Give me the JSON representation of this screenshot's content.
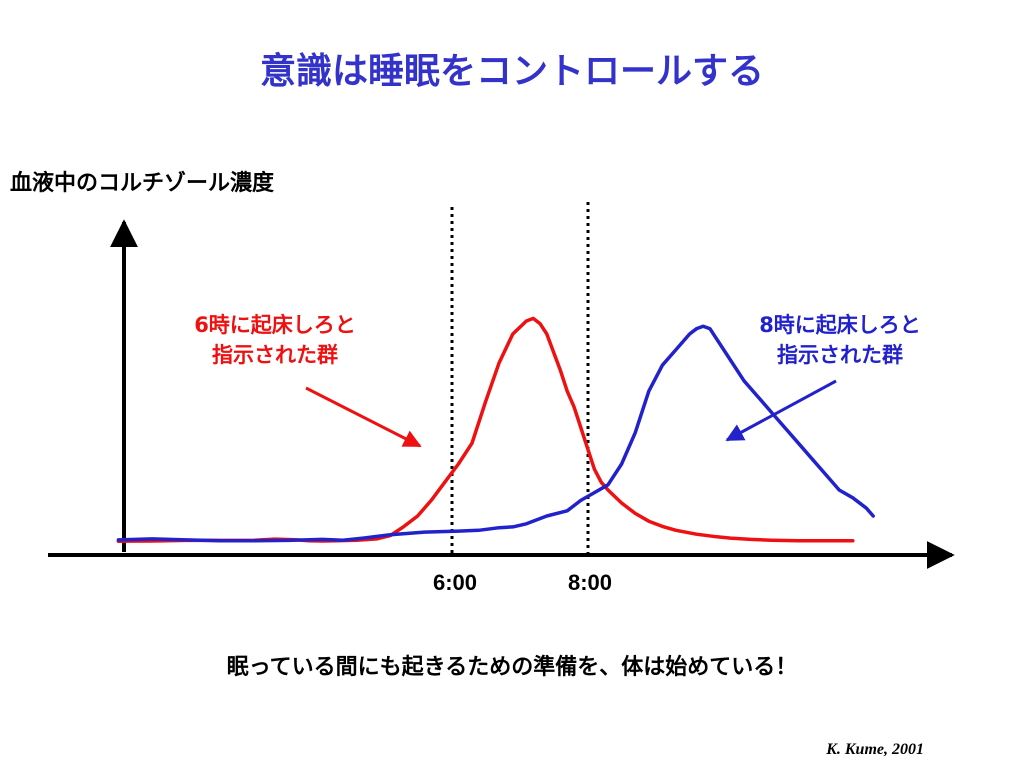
{
  "slide": {
    "title": "意識は睡眠をコントロールする",
    "message": "眠っている間にも起きるための準備を、体は始めている！",
    "credit": "K. Kume, 2001"
  },
  "chart_data": {
    "type": "line",
    "ylabel": "血液中のコルチゾール濃度",
    "xlabel": "",
    "x_ticks": [
      "6:00",
      "8:00"
    ],
    "y_ticks": [],
    "annotations": [
      {
        "lines": [
          "6時に起床しろと",
          "指示された群"
        ],
        "color": "#ee1111"
      },
      {
        "lines": [
          "8時に起床しろと",
          "指示された群"
        ],
        "color": "#2222cc"
      }
    ],
    "series": [
      {
        "color": "#ee1111",
        "x": [
          0,
          0.5,
          1,
          1.5,
          2,
          2.3,
          2.6,
          2.8,
          3,
          3.2,
          3.5,
          3.8,
          4,
          4.2,
          4.4,
          4.6,
          4.8,
          5,
          5.2,
          5.4,
          5.6,
          5.8,
          6,
          6.1,
          6.2,
          6.3,
          6.4,
          6.5,
          6.6,
          6.7,
          6.8,
          6.9,
          7,
          7.1,
          7.2,
          7.4,
          7.6,
          7.8,
          8,
          8.2,
          8.5,
          8.8,
          9,
          9.3,
          9.6,
          10,
          10.5,
          10.8
        ],
        "y": [
          0.3,
          0.4,
          0.6,
          0.6,
          0.7,
          1.1,
          0.9,
          0.5,
          0.4,
          0.5,
          0.7,
          1.2,
          2.5,
          6,
          10,
          16,
          23,
          30,
          38,
          54,
          69,
          80,
          85,
          86,
          84,
          80,
          73,
          66,
          58,
          52,
          44,
          36,
          28,
          23,
          20,
          15,
          11,
          8,
          6,
          4.5,
          3,
          2,
          1.5,
          1,
          0.7,
          0.5,
          0.5,
          0.5
        ]
      },
      {
        "color": "#2222cc",
        "x": [
          0,
          0.5,
          1,
          1.5,
          2,
          2.5,
          3,
          3.3,
          3.6,
          4,
          4.5,
          5,
          5.3,
          5.6,
          5.8,
          6,
          6.3,
          6.6,
          6.8,
          7,
          7.2,
          7.4,
          7.6,
          7.8,
          8,
          8.2,
          8.4,
          8.5,
          8.6,
          8.7,
          8.8,
          9,
          9.2,
          9.4,
          9.6,
          9.8,
          10,
          10.2,
          10.4,
          10.6,
          10.8,
          11,
          11.1
        ],
        "y": [
          0.8,
          1.2,
          0.8,
          0.5,
          0.5,
          0.6,
          1.0,
          0.7,
          1.5,
          2.8,
          3.8,
          4.2,
          4.5,
          5.5,
          5.8,
          7,
          10,
          12,
          16,
          19,
          22,
          30,
          42,
          58,
          68,
          74,
          80,
          82,
          83,
          82,
          78,
          70,
          62,
          56,
          50,
          44,
          38,
          32,
          26,
          20,
          17,
          13,
          10
        ]
      }
    ],
    "grid": false,
    "legend": "none"
  }
}
